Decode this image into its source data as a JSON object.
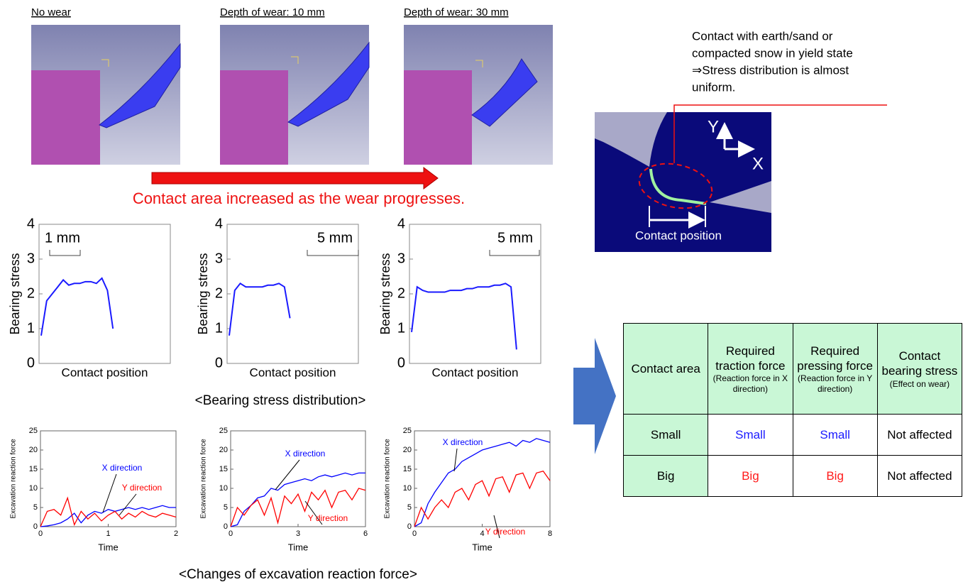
{
  "panels": [
    {
      "title": "No wear"
    },
    {
      "title": "Depth of wear: 10 mm"
    },
    {
      "title": "Depth of wear: 30 mm"
    }
  ],
  "captions": {
    "wear": "Contact area increased as the wear progresses.",
    "bearing": "<Bearing stress distribution>",
    "force": "<Changes of excavation reaction force>"
  },
  "annotation": {
    "lines": [
      "Contact with earth/sand or",
      "compacted snow in yield state",
      "⇒Stress distribution is almost",
      "uniform."
    ],
    "y_axis": "Y",
    "x_axis": "X",
    "position": "Contact position"
  },
  "chart_data": [
    {
      "type": "line",
      "ylabel": "Bearing stress",
      "xlabel": "Contact position",
      "scale_label": "1 mm",
      "color": "#1a1aff",
      "categories": [
        null,
        null,
        null,
        null,
        null,
        null,
        null,
        null,
        null,
        null,
        null,
        null,
        null,
        null,
        null,
        null,
        null,
        null,
        null,
        null,
        null,
        null,
        null,
        null
      ],
      "values": [
        0.8,
        1.8,
        2.0,
        2.2,
        2.4,
        2.25,
        2.3,
        2.3,
        2.35,
        2.35,
        2.3,
        2.45,
        2.1,
        1.0,
        null,
        null,
        null,
        null,
        null,
        null,
        null,
        null,
        null,
        null
      ],
      "ylim": [
        0,
        4
      ],
      "yticks": [
        0,
        1,
        2,
        3,
        4
      ]
    },
    {
      "type": "line",
      "ylabel": "Bearing stress",
      "xlabel": "Contact position",
      "scale_label": "5 mm",
      "color": "#1a1aff",
      "categories": [
        null,
        null,
        null,
        null,
        null,
        null,
        null,
        null,
        null,
        null,
        null,
        null,
        null,
        null,
        null,
        null,
        null,
        null,
        null,
        null,
        null,
        null,
        null,
        null
      ],
      "values": [
        0.8,
        2.1,
        2.3,
        2.2,
        2.2,
        2.2,
        2.2,
        2.25,
        2.25,
        2.3,
        2.2,
        1.3,
        null,
        null,
        null,
        null,
        null,
        null,
        null,
        null,
        null,
        null,
        null,
        null
      ],
      "ylim": [
        0,
        4
      ],
      "yticks": [
        0,
        1,
        2,
        3,
        4
      ]
    },
    {
      "type": "line",
      "ylabel": "Bearing stress",
      "xlabel": "Contact position",
      "scale_label": "5 mm",
      "color": "#1a1aff",
      "categories": [
        null,
        null,
        null,
        null,
        null,
        null,
        null,
        null,
        null,
        null,
        null,
        null,
        null,
        null,
        null,
        null,
        null,
        null,
        null,
        null,
        null,
        null,
        null,
        null
      ],
      "values": [
        0.9,
        2.2,
        2.1,
        2.05,
        2.05,
        2.05,
        2.05,
        2.1,
        2.1,
        2.1,
        2.15,
        2.15,
        2.2,
        2.2,
        2.2,
        2.25,
        2.25,
        2.3,
        2.2,
        0.4,
        null,
        null,
        null,
        null
      ],
      "ylim": [
        0,
        4
      ],
      "yticks": [
        0,
        1,
        2,
        3,
        4
      ]
    },
    {
      "type": "line",
      "ylabel": "Excavation reaction force",
      "xlabel": "Time",
      "x": [
        0,
        0.1,
        0.2,
        0.3,
        0.4,
        0.5,
        0.6,
        0.7,
        0.8,
        0.9,
        1.0,
        1.1,
        1.2,
        1.3,
        1.4,
        1.5,
        1.6,
        1.7,
        1.8,
        1.9,
        2.0
      ],
      "series": [
        {
          "name": "X direction",
          "color": "#0000ff",
          "values": [
            0,
            0.2,
            0.5,
            1.0,
            2.0,
            3.5,
            1.0,
            3.0,
            4.0,
            3.5,
            4.5,
            4.0,
            4.5,
            5.0,
            4.5,
            5.0,
            4.5,
            5.0,
            5.5,
            5.0,
            5.0
          ]
        },
        {
          "name": "Y direction",
          "color": "#ff0000",
          "values": [
            0,
            4.0,
            4.5,
            3.0,
            7.5,
            0.5,
            4.0,
            2.0,
            3.5,
            1.5,
            3.0,
            4.0,
            2.0,
            3.5,
            2.5,
            4.0,
            3.0,
            2.5,
            3.5,
            3.0,
            2.5
          ]
        }
      ],
      "xlim": [
        0,
        2
      ],
      "xticks": [
        0,
        1,
        2
      ],
      "ylim": [
        0,
        25
      ],
      "yticks": [
        0,
        5,
        10,
        15,
        20,
        25
      ]
    },
    {
      "type": "line",
      "ylabel": "Excavation reaction force",
      "xlabel": "Time",
      "x": [
        0,
        0.3,
        0.6,
        0.9,
        1.2,
        1.5,
        1.8,
        2.1,
        2.4,
        2.7,
        3.0,
        3.3,
        3.6,
        3.9,
        4.2,
        4.5,
        4.8,
        5.1,
        5.4,
        5.7,
        6.0
      ],
      "series": [
        {
          "name": "X direction",
          "color": "#0000ff",
          "values": [
            0,
            0.5,
            4.0,
            5.5,
            7.5,
            8.0,
            10.0,
            9.5,
            11.0,
            11.5,
            12.0,
            12.5,
            12.0,
            13.0,
            13.5,
            13.0,
            13.5,
            14.0,
            13.5,
            14.0,
            14.0
          ]
        },
        {
          "name": "Y direction",
          "color": "#ff0000",
          "values": [
            0,
            5.0,
            3.0,
            5.5,
            7.0,
            3.0,
            7.5,
            1.0,
            8.0,
            6.0,
            8.5,
            4.0,
            9.0,
            7.0,
            9.5,
            5.0,
            9.0,
            9.5,
            7.0,
            10.0,
            9.5
          ]
        }
      ],
      "xlim": [
        0,
        6
      ],
      "xticks": [
        0,
        3,
        6
      ],
      "ylim": [
        0,
        25
      ],
      "yticks": [
        0,
        5,
        10,
        15,
        20,
        25
      ]
    },
    {
      "type": "line",
      "ylabel": "Excavation reaction force",
      "xlabel": "Time",
      "x": [
        0,
        0.4,
        0.8,
        1.2,
        1.6,
        2.0,
        2.4,
        2.8,
        3.2,
        3.6,
        4.0,
        4.4,
        4.8,
        5.2,
        5.6,
        6.0,
        6.4,
        6.8,
        7.2,
        7.6,
        8.0
      ],
      "series": [
        {
          "name": "X direction",
          "color": "#0000ff",
          "values": [
            0,
            1.0,
            6.0,
            9.0,
            11.5,
            14.0,
            15.0,
            17.0,
            18.0,
            19.0,
            20.0,
            20.5,
            21.0,
            21.5,
            22.0,
            21.0,
            22.5,
            22.0,
            23.0,
            22.5,
            22.0
          ]
        },
        {
          "name": "Y direction",
          "color": "#ff0000",
          "values": [
            0,
            5.0,
            2.0,
            5.0,
            7.0,
            5.0,
            9.0,
            10.0,
            7.0,
            11.0,
            12.0,
            8.0,
            12.5,
            13.0,
            9.0,
            13.5,
            14.0,
            10.0,
            14.0,
            14.5,
            12.0
          ]
        }
      ],
      "xlim": [
        0,
        8
      ],
      "xticks": [
        0,
        4,
        8
      ],
      "ylim": [
        0,
        25
      ],
      "yticks": [
        0,
        5,
        10,
        15,
        20,
        25
      ]
    }
  ],
  "table": {
    "header": [
      {
        "title": "Contact area"
      },
      {
        "title": "Required traction force",
        "note": "(Reaction force in X direction)"
      },
      {
        "title": "Required pressing force",
        "note": "(Reaction force in Y direction)"
      },
      {
        "title": "Contact bearing stress",
        "note": "(Effect on wear)"
      }
    ],
    "rows": [
      {
        "cells": [
          "Small",
          "Small",
          "Small",
          "Not affected"
        ],
        "color": "#1a1aff"
      },
      {
        "cells": [
          "Big",
          "Big",
          "Big",
          "Not affected"
        ],
        "color": "#ff1a1a"
      }
    ]
  }
}
